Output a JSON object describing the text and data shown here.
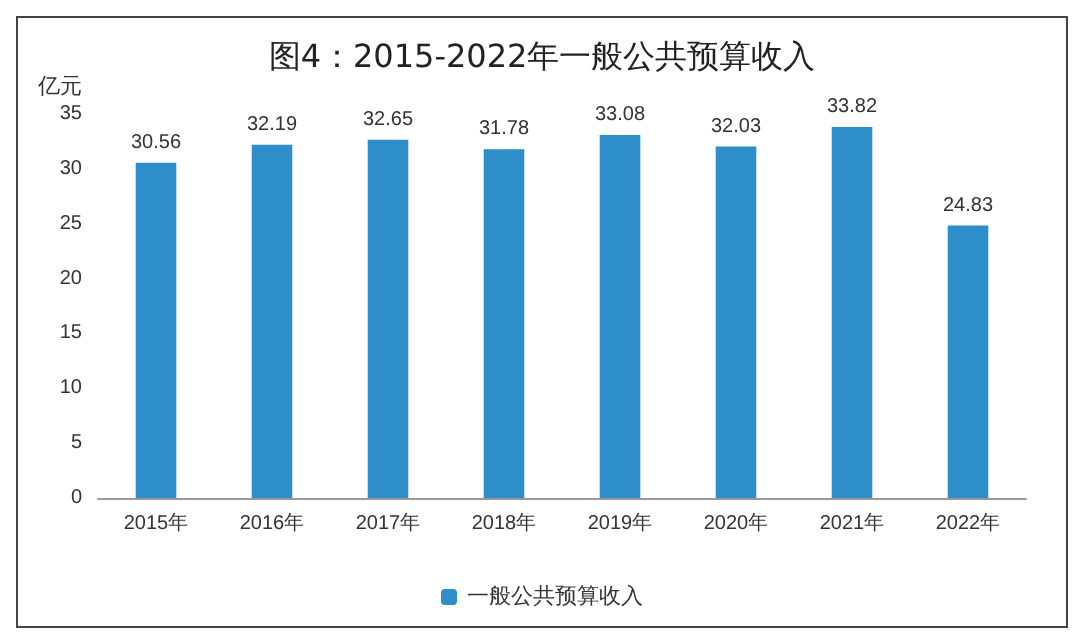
{
  "chart_data": {
    "type": "bar",
    "title": "图4：2015-2022年一般公共预算收入",
    "ylabel": "亿元",
    "categories": [
      "2015年",
      "2016年",
      "2017年",
      "2018年",
      "2019年",
      "2020年",
      "2021年",
      "2022年"
    ],
    "series": [
      {
        "name": "一般公共预算收入",
        "color": "#2e8ec9",
        "values": [
          30.56,
          32.19,
          32.65,
          31.78,
          33.08,
          32.03,
          33.82,
          24.83
        ]
      }
    ],
    "ylim": [
      0,
      35
    ],
    "yticks": [
      0,
      5,
      10,
      15,
      20,
      25,
      30,
      35
    ],
    "grid": false,
    "legend": "bottom",
    "data_labels": true
  }
}
